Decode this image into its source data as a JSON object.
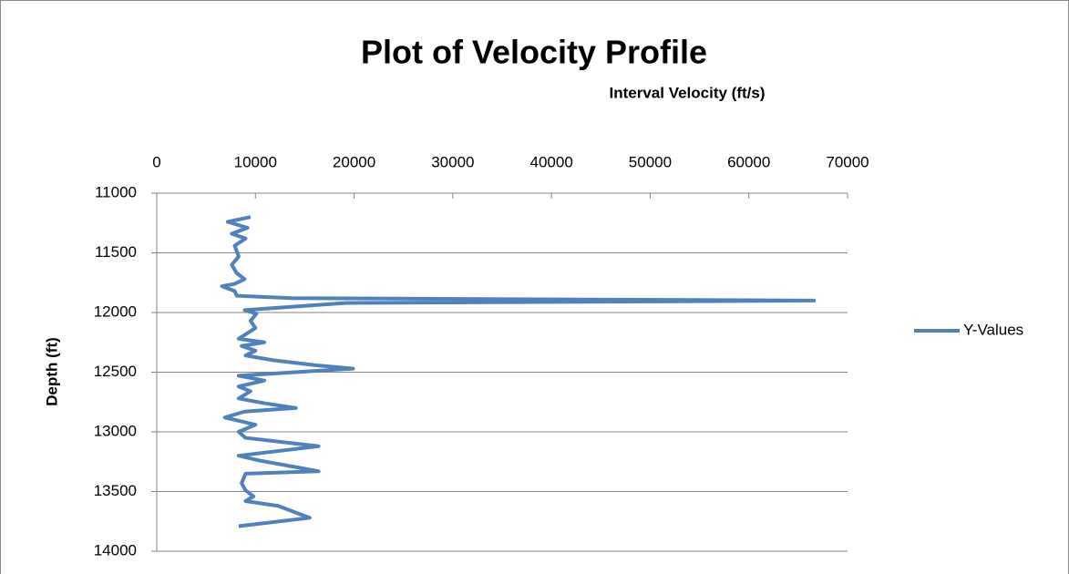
{
  "chart_data": {
    "type": "scatter",
    "title": "Plot of Velocity Profile",
    "x_label": "Interval Velocity (ft/s)",
    "y_label": "Depth (ft)",
    "x": [
      9500,
      7200,
      9200,
      7600,
      9000,
      7900,
      8300,
      7600,
      8100,
      8900,
      7900,
      6600,
      7900,
      8100,
      13700,
      66600,
      19200,
      8900,
      10100,
      9500,
      10000,
      8300,
      10900,
      8600,
      10000,
      9000,
      11800,
      15900,
      19900,
      8300,
      10900,
      8300,
      9500,
      8300,
      10900,
      14100,
      8900,
      6900,
      10000,
      8300,
      9000,
      16400,
      8300,
      10400,
      16400,
      9000,
      8600,
      9000,
      9800,
      9000,
      12300,
      15500,
      8300
    ],
    "series": [
      {
        "name": "Y-Values",
        "color": "#4f81bd",
        "values": [
          11200,
          11240,
          11290,
          11340,
          11380,
          11440,
          11530,
          11600,
          11670,
          11720,
          11760,
          11780,
          11820,
          11860,
          11880,
          11900,
          11920,
          11980,
          12010,
          12070,
          12130,
          12220,
          12250,
          12280,
          12320,
          12360,
          12400,
          12440,
          12470,
          12530,
          12570,
          12620,
          12660,
          12720,
          12760,
          12800,
          12830,
          12880,
          12940,
          13000,
          13050,
          13120,
          13200,
          13240,
          13330,
          13350,
          13430,
          13490,
          13540,
          13580,
          13620,
          13720,
          13790
        ]
      }
    ],
    "xlim": [
      0,
      70000
    ],
    "xticks": [
      0,
      10000,
      20000,
      30000,
      40000,
      50000,
      60000,
      70000
    ],
    "ylim": [
      11000,
      14000
    ],
    "yticks": [
      11000,
      11500,
      12000,
      12500,
      13000,
      13500,
      14000
    ],
    "y_reversed": true,
    "grid": true,
    "legend": "right"
  }
}
